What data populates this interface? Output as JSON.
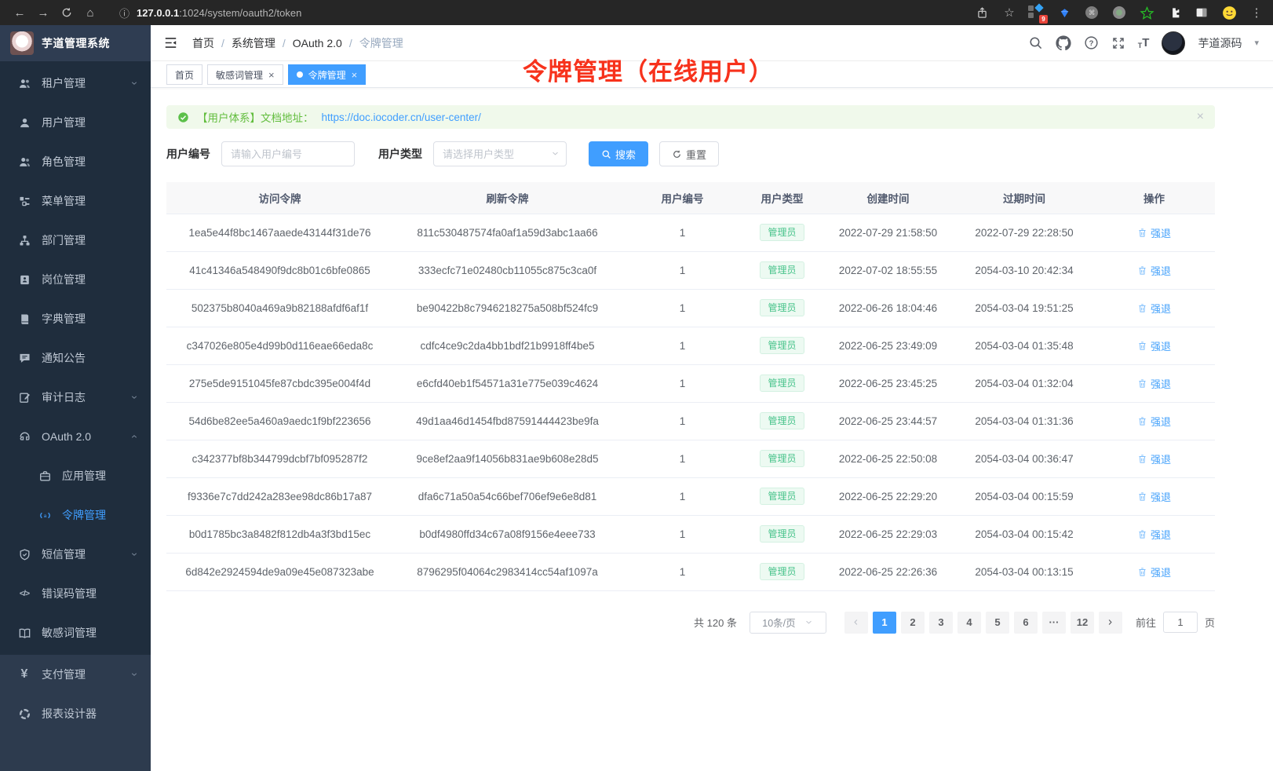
{
  "colors": {
    "primary": "#409eff",
    "sidebar_bg": "#2d3b4e",
    "submenu_bg": "#1f2d3d",
    "badge_green": "#48c38b",
    "annotation_red": "#f7321c",
    "alert_green_bg": "#f0f9eb"
  },
  "icons": {
    "back": "←",
    "forward": "→",
    "home": "⌂",
    "info": "ⓘ",
    "star": "☆",
    "kebab": "⋮",
    "caret": "▾",
    "close": "×"
  },
  "browser": {
    "url_host": "127.0.0.1",
    "url_rest": ":1024/system/oauth2/token",
    "extensions_badge": "9"
  },
  "sidebar": {
    "app_title": "芋道管理系统",
    "items": [
      {
        "name": "tenant",
        "label": "租户管理",
        "icon": "users-icon",
        "arrow": "down",
        "section": "sub"
      },
      {
        "name": "user",
        "label": "用户管理",
        "icon": "user-icon",
        "section": "sub"
      },
      {
        "name": "role",
        "label": "角色管理",
        "icon": "roles-icon",
        "section": "sub"
      },
      {
        "name": "menu",
        "label": "菜单管理",
        "icon": "menu-tree-icon",
        "section": "sub"
      },
      {
        "name": "dept",
        "label": "部门管理",
        "icon": "org-icon",
        "section": "sub"
      },
      {
        "name": "post",
        "label": "岗位管理",
        "icon": "post-icon",
        "section": "sub"
      },
      {
        "name": "dict",
        "label": "字典管理",
        "icon": "dict-icon",
        "section": "sub"
      },
      {
        "name": "notice",
        "label": "通知公告",
        "icon": "notice-icon",
        "section": "sub"
      },
      {
        "name": "audit-log",
        "label": "审计日志",
        "icon": "log-icon",
        "arrow": "down",
        "section": "sub"
      },
      {
        "name": "oauth2",
        "label": "OAuth 2.0",
        "icon": "oauth-icon",
        "arrow": "up",
        "section": "sub"
      },
      {
        "name": "oauth2-application",
        "label": "应用管理",
        "icon": "app-icon",
        "indent": true,
        "section": "sub"
      },
      {
        "name": "oauth2-token",
        "label": "令牌管理",
        "icon": "token-icon",
        "indent": true,
        "active": true,
        "section": "sub"
      },
      {
        "name": "sms",
        "label": "短信管理",
        "icon": "shield-icon",
        "arrow": "down",
        "section": "sub"
      },
      {
        "name": "error-code",
        "label": "错误码管理",
        "icon": "code-icon",
        "section": "sub"
      },
      {
        "name": "sensitive-word",
        "label": "敏感词管理",
        "icon": "open-book-icon",
        "section": "sub"
      },
      {
        "name": "pay",
        "label": "支付管理",
        "icon": "yen-icon",
        "arrow": "down",
        "section": "base"
      },
      {
        "name": "report-designer",
        "label": "报表设计器",
        "icon": "report-icon",
        "section": "base"
      }
    ]
  },
  "header": {
    "breadcrumb": [
      "首页",
      "系统管理",
      "OAuth 2.0",
      "令牌管理"
    ],
    "user_name": "芋道源码"
  },
  "tabs": [
    {
      "label": "首页"
    },
    {
      "label": "敏感词管理",
      "closable": true
    },
    {
      "label": "令牌管理",
      "closable": true,
      "active": true,
      "dot": true
    }
  ],
  "annotation": {
    "text": "令牌管理（在线用户）"
  },
  "alert": {
    "label": "【用户体系】文档地址：",
    "link": "https://doc.iocoder.cn/user-center/"
  },
  "filters": {
    "user_id_label": "用户编号",
    "user_id_placeholder": "请输入用户编号",
    "user_type_label": "用户类型",
    "user_type_placeholder": "请选择用户类型",
    "search_label": "搜索",
    "reset_label": "重置"
  },
  "table": {
    "columns": [
      "访问令牌",
      "刷新令牌",
      "用户编号",
      "用户类型",
      "创建时间",
      "过期时间",
      "操作"
    ],
    "rows": [
      {
        "access_token": "1ea5e44f8bc1467aaede43144f31de76",
        "refresh_token": "811c530487574fa0af1a59d3abc1aa66",
        "user_id": "1",
        "user_type": "管理员",
        "create_time": "2022-07-29 21:58:50",
        "expire_time": "2022-07-29 22:28:50",
        "action": "强退"
      },
      {
        "access_token": "41c41346a548490f9dc8b01c6bfe0865",
        "refresh_token": "333ecfc71e02480cb11055c875c3ca0f",
        "user_id": "1",
        "user_type": "管理员",
        "create_time": "2022-07-02 18:55:55",
        "expire_time": "2054-03-10 20:42:34",
        "action": "强退"
      },
      {
        "access_token": "502375b8040a469a9b82188afdf6af1f",
        "refresh_token": "be90422b8c7946218275a508bf524fc9",
        "user_id": "1",
        "user_type": "管理员",
        "create_time": "2022-06-26 18:04:46",
        "expire_time": "2054-03-04 19:51:25",
        "action": "强退"
      },
      {
        "access_token": "c347026e805e4d99b0d116eae66eda8c",
        "refresh_token": "cdfc4ce9c2da4bb1bdf21b9918ff4be5",
        "user_id": "1",
        "user_type": "管理员",
        "create_time": "2022-06-25 23:49:09",
        "expire_time": "2054-03-04 01:35:48",
        "action": "强退"
      },
      {
        "access_token": "275e5de9151045fe87cbdc395e004f4d",
        "refresh_token": "e6cfd40eb1f54571a31e775e039c4624",
        "user_id": "1",
        "user_type": "管理员",
        "create_time": "2022-06-25 23:45:25",
        "expire_time": "2054-03-04 01:32:04",
        "action": "强退"
      },
      {
        "access_token": "54d6be82ee5a460a9aedc1f9bf223656",
        "refresh_token": "49d1aa46d1454fbd87591444423be9fa",
        "user_id": "1",
        "user_type": "管理员",
        "create_time": "2022-06-25 23:44:57",
        "expire_time": "2054-03-04 01:31:36",
        "action": "强退"
      },
      {
        "access_token": "c342377bf8b344799dcbf7bf095287f2",
        "refresh_token": "9ce8ef2aa9f14056b831ae9b608e28d5",
        "user_id": "1",
        "user_type": "管理员",
        "create_time": "2022-06-25 22:50:08",
        "expire_time": "2054-03-04 00:36:47",
        "action": "强退"
      },
      {
        "access_token": "f9336e7c7dd242a283ee98dc86b17a87",
        "refresh_token": "dfa6c71a50a54c66bef706ef9e6e8d81",
        "user_id": "1",
        "user_type": "管理员",
        "create_time": "2022-06-25 22:29:20",
        "expire_time": "2054-03-04 00:15:59",
        "action": "强退"
      },
      {
        "access_token": "b0d1785bc3a8482f812db4a3f3bd15ec",
        "refresh_token": "b0df4980ffd34c67a08f9156e4eee733",
        "user_id": "1",
        "user_type": "管理员",
        "create_time": "2022-06-25 22:29:03",
        "expire_time": "2054-03-04 00:15:42",
        "action": "强退"
      },
      {
        "access_token": "6d842e2924594de9a09e45e087323abe",
        "refresh_token": "8796295f04064c2983414cc54af1097a",
        "user_id": "1",
        "user_type": "管理员",
        "create_time": "2022-06-25 22:26:36",
        "expire_time": "2054-03-04 00:13:15",
        "action": "强退"
      }
    ]
  },
  "pagination": {
    "total": "共 120 条",
    "page_size": "10条/页",
    "pages": [
      "1",
      "2",
      "3",
      "4",
      "5",
      "6",
      "···",
      "12"
    ],
    "active_page": "1",
    "goto_label": "前往",
    "goto_value": "1",
    "page_label": "页"
  }
}
